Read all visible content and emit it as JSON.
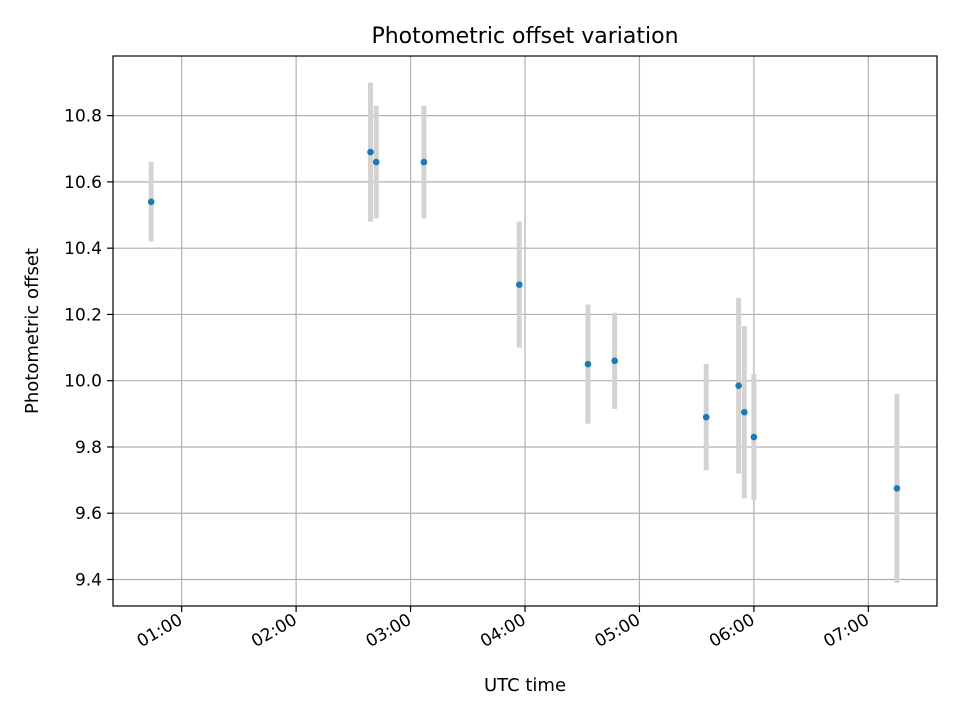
{
  "chart_data": {
    "type": "scatter",
    "title": "Photometric offset variation",
    "xlabel": "UTC time",
    "ylabel": "Photometric offset",
    "x_tick_labels": [
      "01:00",
      "02:00",
      "03:00",
      "04:00",
      "05:00",
      "06:00",
      "07:00"
    ],
    "y_tick_labels": [
      "9.4",
      "9.6",
      "9.8",
      "10.0",
      "10.2",
      "10.4",
      "10.6",
      "10.8"
    ],
    "xlim": [
      "00:24",
      "07:36"
    ],
    "ylim": [
      9.32,
      10.98
    ],
    "grid": true,
    "series": [
      {
        "points": [
          {
            "x": "00:44",
            "y": 10.54,
            "yerr": 0.12
          },
          {
            "x": "02:39",
            "y": 10.69,
            "yerr": 0.21
          },
          {
            "x": "02:42",
            "y": 10.66,
            "yerr": 0.17
          },
          {
            "x": "03:07",
            "y": 10.66,
            "yerr": 0.17
          },
          {
            "x": "03:57",
            "y": 10.29,
            "yerr": 0.19
          },
          {
            "x": "04:33",
            "y": 10.05,
            "yerr": 0.18
          },
          {
            "x": "04:47",
            "y": 10.06,
            "yerr": 0.145
          },
          {
            "x": "05:35",
            "y": 9.89,
            "yerr": 0.16
          },
          {
            "x": "05:52",
            "y": 9.985,
            "yerr": 0.265
          },
          {
            "x": "05:55",
            "y": 9.905,
            "yerr": 0.26
          },
          {
            "x": "06:00",
            "y": 9.83,
            "yerr": 0.19
          },
          {
            "x": "07:15",
            "y": 9.675,
            "yerr": 0.285
          }
        ]
      }
    ],
    "colors": {
      "marker": "#1f77b4",
      "errorbar": "#d3d3d3",
      "grid": "#b0b0b0",
      "axes": "#000000"
    }
  }
}
